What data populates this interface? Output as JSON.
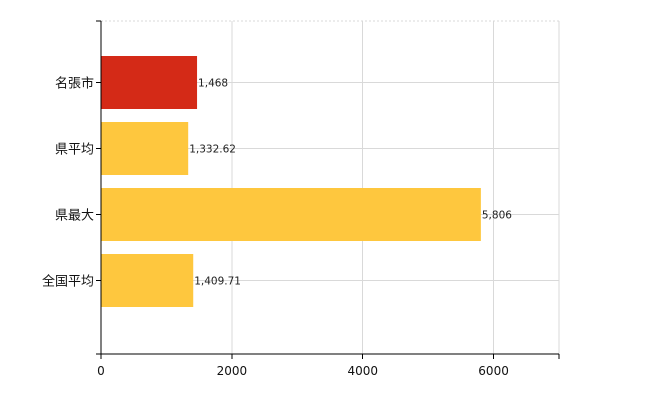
{
  "chart_data": {
    "type": "bar",
    "orientation": "horizontal",
    "title": "",
    "xlabel": "",
    "ylabel": "",
    "categories": [
      "名張市",
      "県平均",
      "県最大",
      "全国平均"
    ],
    "values": [
      1468,
      1332.62,
      5806,
      1409.71
    ],
    "data_labels": [
      "1,468",
      "1,332.62",
      "5,806",
      "1,409.71"
    ],
    "bar_colors": [
      "#d42a17",
      "#fec73e",
      "#fec73e",
      "#fec73e"
    ],
    "xlim": [
      0,
      7000
    ],
    "x_ticks": [
      0,
      2000,
      4000,
      6000
    ],
    "x_tick_labels": [
      "0",
      "2000",
      "4000",
      "6000"
    ],
    "grid": true,
    "grid_color": "#d9d9d9",
    "axis_color": "#000000",
    "legend": "none"
  }
}
